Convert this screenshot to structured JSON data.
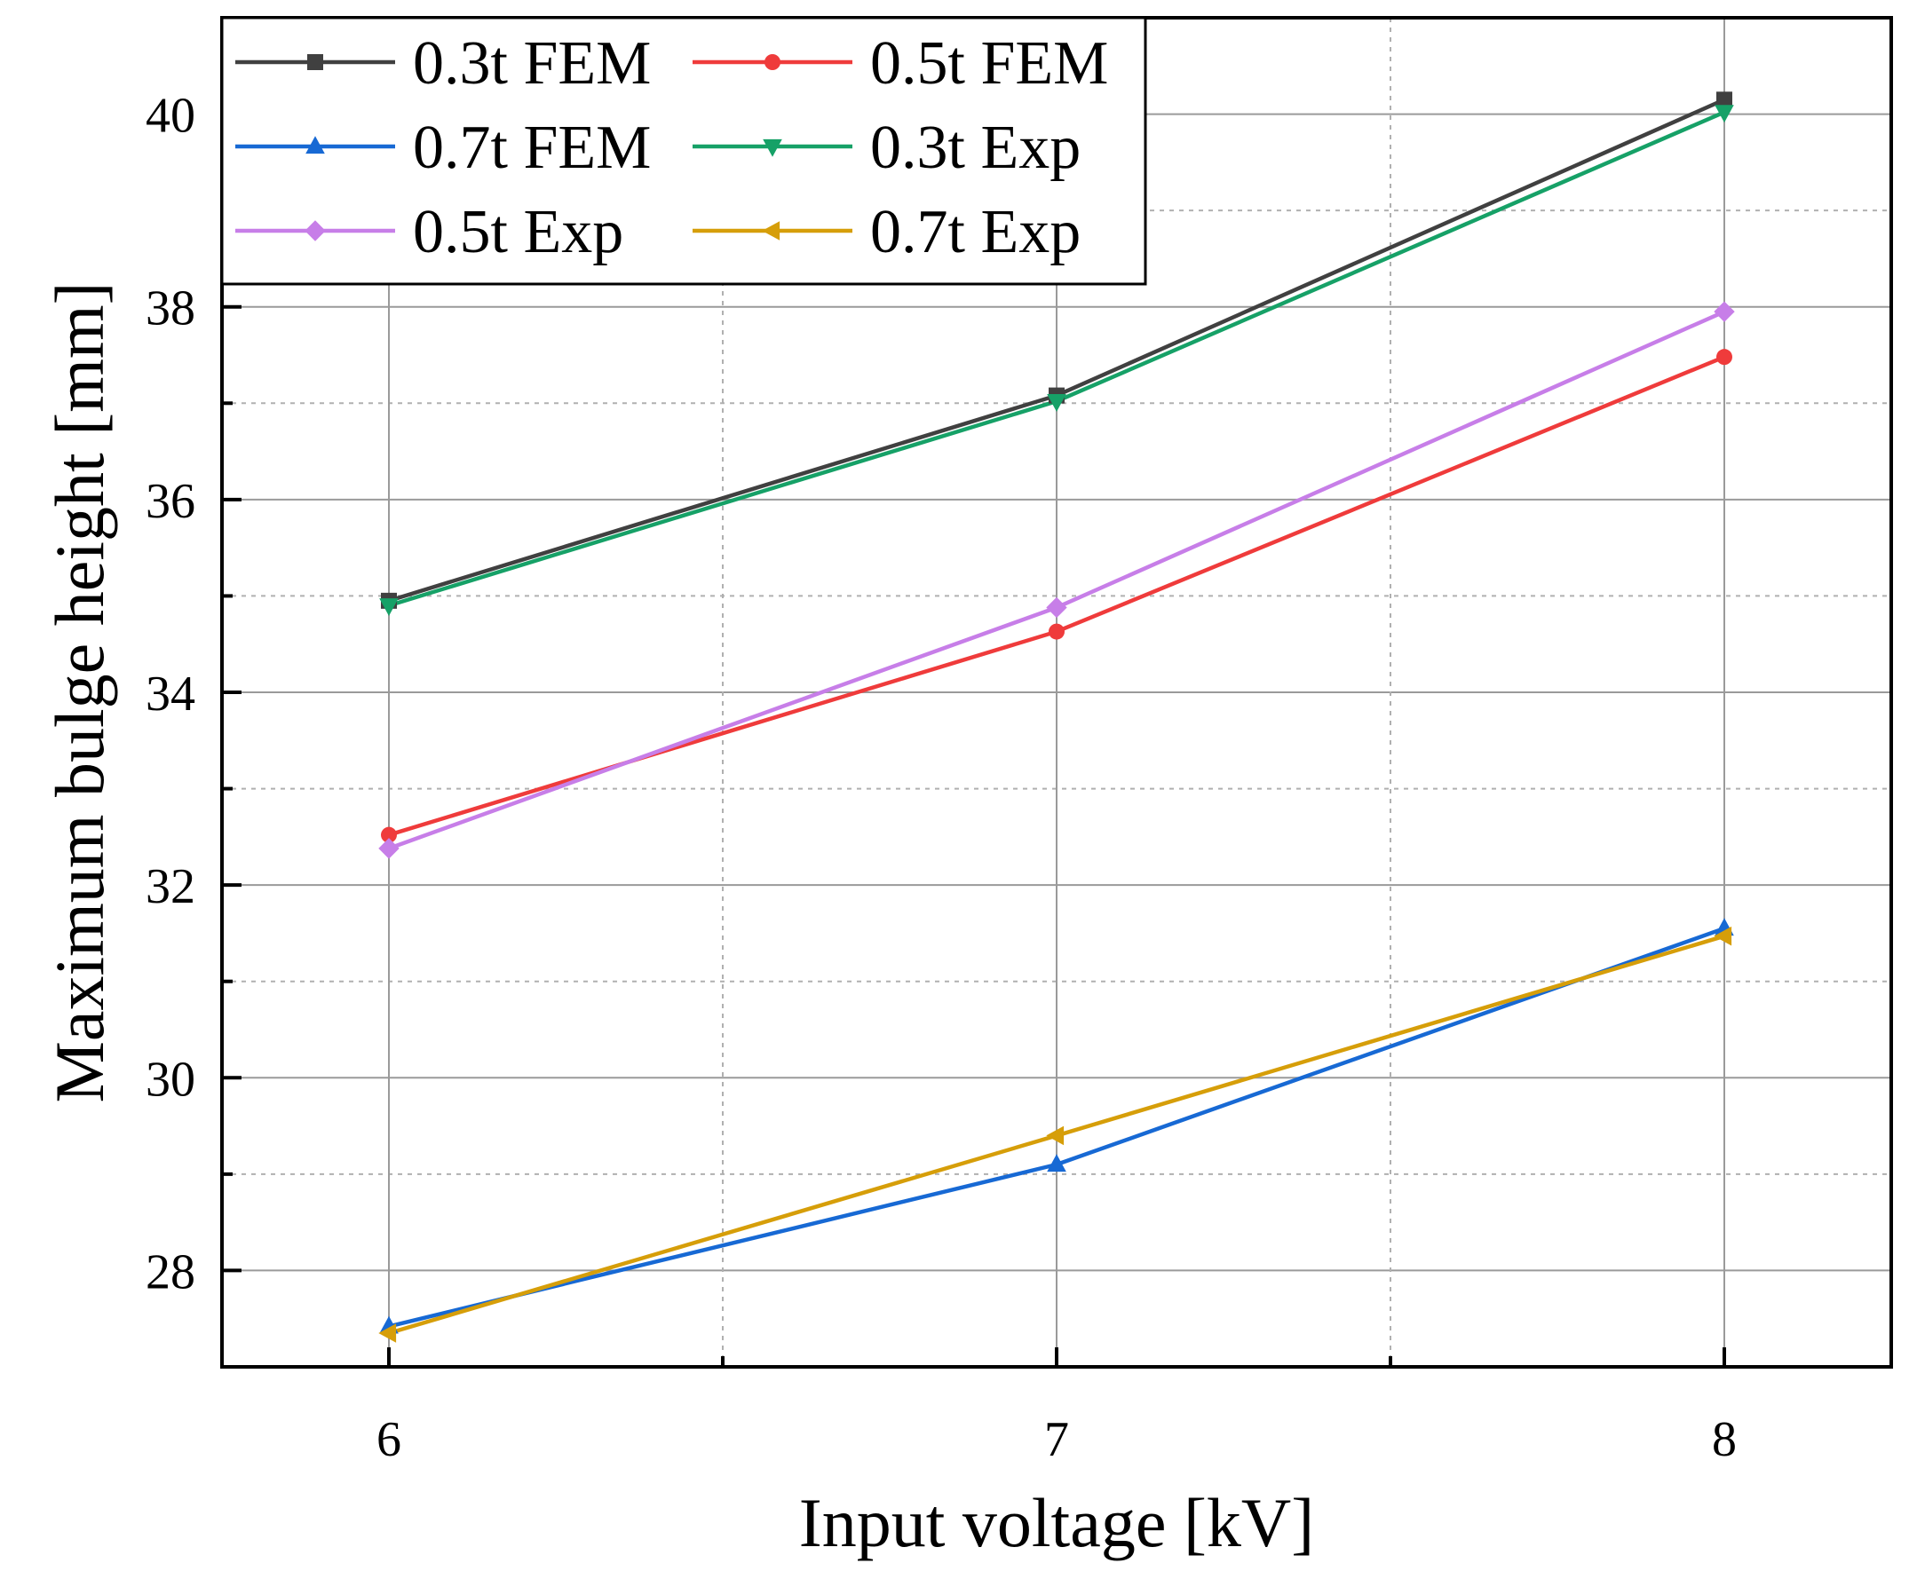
{
  "chart_data": {
    "type": "line",
    "title": "",
    "xlabel": "Input voltage [kV]",
    "ylabel": "Maximum bulge height [mm]",
    "x": [
      6,
      7,
      8
    ],
    "xticks": [
      "6",
      "7",
      "8"
    ],
    "yticks": [
      "28",
      "30",
      "32",
      "34",
      "36",
      "38",
      "40"
    ],
    "xlim": [
      5.75,
      8.25
    ],
    "ylim": [
      27.0,
      41.0
    ],
    "grid": true,
    "legend_position": "top-left",
    "series": [
      {
        "name": "0.3t FEM",
        "values": [
          34.95,
          37.08,
          40.15
        ],
        "color": "#404040",
        "marker": "square"
      },
      {
        "name": "0.5t FEM",
        "values": [
          32.52,
          34.63,
          37.48
        ],
        "color": "#ef3b3b",
        "marker": "circle"
      },
      {
        "name": "0.7t FEM",
        "values": [
          27.42,
          29.1,
          31.55
        ],
        "color": "#1769d4",
        "marker": "triangle-up"
      },
      {
        "name": "0.3t Exp",
        "values": [
          34.9,
          37.02,
          40.02
        ],
        "color": "#16a167",
        "marker": "triangle-down"
      },
      {
        "name": "0.5t Exp",
        "values": [
          32.38,
          34.88,
          37.95
        ],
        "color": "#c77ee8",
        "marker": "diamond"
      },
      {
        "name": "0.7t Exp",
        "values": [
          27.35,
          29.4,
          31.47
        ],
        "color": "#d69e09",
        "marker": "triangle-left"
      }
    ]
  }
}
